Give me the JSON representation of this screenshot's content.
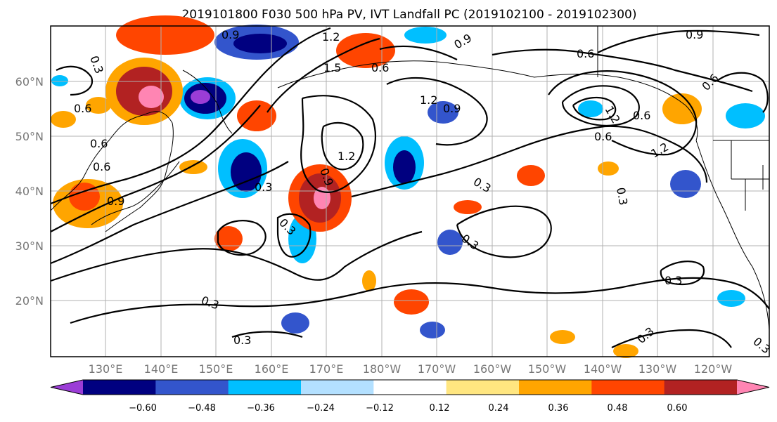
{
  "figure": {
    "title": "2019101800 F030 500 hPa PV, IVT Landfall PC (2019102100 - 2019102300)"
  },
  "map": {
    "lat_labels": [
      "60°N",
      "50°N",
      "40°N",
      "30°N",
      "20°N"
    ],
    "lon_labels": [
      "130°E",
      "140°E",
      "150°E",
      "160°E",
      "170°E",
      "180°W",
      "170°W",
      "160°W",
      "150°W",
      "140°W",
      "130°W",
      "120°W"
    ],
    "contour_labels": [
      "0.3",
      "0.6",
      "0.9",
      "1.2",
      "1.5"
    ],
    "land_color": "#000000",
    "grid_color": "#b0b0b0"
  },
  "colorbar": {
    "colors": [
      "#9b3dd6",
      "#000080",
      "#3355cc",
      "#00bfff",
      "#b3e0ff",
      "#ffffff",
      "#ffe680",
      "#ffa500",
      "#ff4500",
      "#b22222",
      "#ff85b3"
    ],
    "tick_labels": [
      "−0.60",
      "−0.48",
      "−0.36",
      "−0.24",
      "−0.12",
      "0.12",
      "0.24",
      "0.36",
      "0.48",
      "0.60"
    ]
  }
}
